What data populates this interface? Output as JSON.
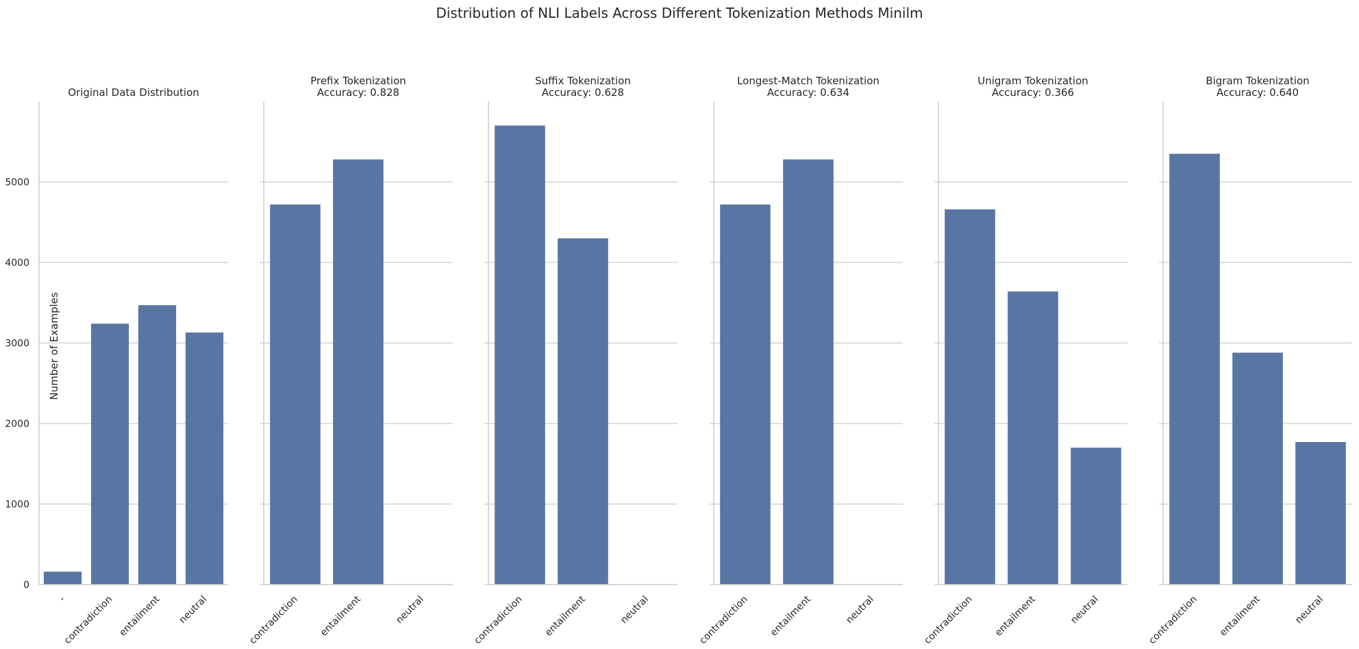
{
  "figure": {
    "title": "Distribution of NLI Labels Across Different Tokenization Methods Minilm",
    "ylabel": "Number of Examples",
    "bar_color": "#5875a4",
    "grid_color": "#cccccc",
    "yticks": [
      0,
      1000,
      2000,
      3000,
      4000,
      5000
    ],
    "ylim": [
      0,
      6000
    ],
    "grid": true
  },
  "chart_data": [
    {
      "type": "bar",
      "title": "Original Data Distribution",
      "subtitle": "",
      "categories": [
        "-",
        "contradiction",
        "entailment",
        "neutral"
      ],
      "values": [
        160,
        3240,
        3470,
        3130
      ]
    },
    {
      "type": "bar",
      "title": "Prefix Tokenization",
      "subtitle": "Accuracy: 0.828",
      "categories": [
        "contradiction",
        "entailment",
        "neutral"
      ],
      "values": [
        4720,
        5280,
        0
      ]
    },
    {
      "type": "bar",
      "title": "Suffix Tokenization",
      "subtitle": "Accuracy: 0.628",
      "categories": [
        "contradiction",
        "entailment",
        "neutral"
      ],
      "values": [
        5700,
        4300,
        0
      ]
    },
    {
      "type": "bar",
      "title": "Longest-Match Tokenization",
      "subtitle": "Accuracy: 0.634",
      "categories": [
        "contradiction",
        "entailment",
        "neutral"
      ],
      "values": [
        4720,
        5280,
        0
      ]
    },
    {
      "type": "bar",
      "title": "Unigram Tokenization",
      "subtitle": "Accuracy: 0.366",
      "categories": [
        "contradiction",
        "entailment",
        "neutral"
      ],
      "values": [
        4660,
        3640,
        1700
      ]
    },
    {
      "type": "bar",
      "title": "Bigram Tokenization",
      "subtitle": "Accuracy: 0.640",
      "categories": [
        "contradiction",
        "entailment",
        "neutral"
      ],
      "values": [
        5350,
        2880,
        1770
      ]
    }
  ]
}
